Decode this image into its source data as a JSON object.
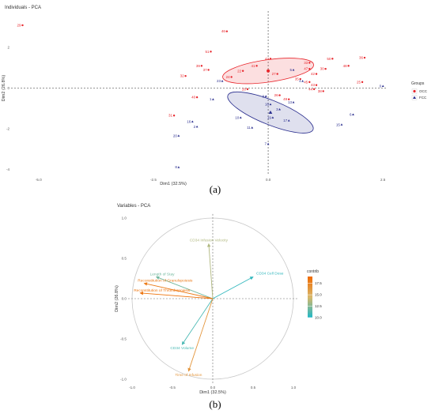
{
  "chart_data": [
    {
      "type": "scatter",
      "title": "Individuals - PCA",
      "xlabel": "Dim1 (32.5%)",
      "ylabel": "Dim2 (26.8%)",
      "xlim": [
        -5.6,
        2.6
      ],
      "ylim": [
        -4.3,
        3.8
      ],
      "x_ticks": [
        -5.0,
        -2.5,
        0.0,
        2.5
      ],
      "y_ticks": [
        -4,
        -2,
        0,
        2
      ],
      "legend": {
        "title": "Groups",
        "placement": "right",
        "entries": [
          "OCC",
          "FCC"
        ]
      },
      "colors": {
        "OCC": "#e8262c",
        "FCC": "#2b2f8f"
      },
      "series": [
        {
          "name": "OCC",
          "points": [
            {
              "label": "29",
              "x": -5.35,
              "y": 3.1
            },
            {
              "label": "46",
              "x": -0.9,
              "y": 2.8
            },
            {
              "label": "51",
              "x": -1.25,
              "y": 1.8
            },
            {
              "label": "39",
              "x": -1.45,
              "y": 1.1
            },
            {
              "label": "37",
              "x": -1.3,
              "y": 0.9
            },
            {
              "label": "32",
              "x": -1.8,
              "y": 0.6
            },
            {
              "label": "43",
              "x": 0.05,
              "y": 1.45
            },
            {
              "label": "41",
              "x": -0.25,
              "y": 1.1
            },
            {
              "label": "22",
              "x": -0.55,
              "y": 0.85
            },
            {
              "label": "27",
              "x": 0.2,
              "y": 0.7
            },
            {
              "label": "24",
              "x": -0.8,
              "y": 0.55
            },
            {
              "label": "50",
              "x": 1.4,
              "y": 1.45
            },
            {
              "label": "36",
              "x": 2.1,
              "y": 1.5
            },
            {
              "label": "33",
              "x": 0.9,
              "y": 1.25
            },
            {
              "label": "48",
              "x": 1.75,
              "y": 1.1
            },
            {
              "label": "47",
              "x": 0.9,
              "y": 0.95
            },
            {
              "label": "30",
              "x": 1.25,
              "y": 0.95
            },
            {
              "label": "42",
              "x": 1.05,
              "y": 0.7
            },
            {
              "label": "35",
              "x": 0.7,
              "y": 0.45
            },
            {
              "label": "45",
              "x": 0.9,
              "y": 0.3
            },
            {
              "label": "43",
              "x": 1.05,
              "y": 0.15
            },
            {
              "label": "44",
              "x": 1.0,
              "y": -0.05
            },
            {
              "label": "38",
              "x": 1.2,
              "y": -0.15
            },
            {
              "label": "25",
              "x": 2.05,
              "y": 0.3
            },
            {
              "label": "28",
              "x": -0.45,
              "y": -0.05
            },
            {
              "label": "40",
              "x": -1.55,
              "y": -0.45
            },
            {
              "label": "31",
              "x": -2.05,
              "y": -1.35
            },
            {
              "label": "26",
              "x": 0.25,
              "y": -0.35
            },
            {
              "label": "49",
              "x": 0.45,
              "y": -0.55
            }
          ],
          "mean": {
            "x": 0.0,
            "y": 0.85
          }
        },
        {
          "name": "FCC",
          "points": [
            {
              "label": "5",
              "x": 0.55,
              "y": 0.9
            },
            {
              "label": "23",
              "x": -1.0,
              "y": 0.35
            },
            {
              "label": "4",
              "x": 0.75,
              "y": 0.35
            },
            {
              "label": "0",
              "x": 2.5,
              "y": 0.1
            },
            {
              "label": "1",
              "x": -1.2,
              "y": -0.55
            },
            {
              "label": "9",
              "x": -0.05,
              "y": -0.4
            },
            {
              "label": "18",
              "x": 0.05,
              "y": -0.8
            },
            {
              "label": "13",
              "x": 0.55,
              "y": -0.7
            },
            {
              "label": "3",
              "x": 0.25,
              "y": -1.05
            },
            {
              "label": "10",
              "x": -0.6,
              "y": -1.45
            },
            {
              "label": "19",
              "x": 0.1,
              "y": -1.45
            },
            {
              "label": "17",
              "x": 0.45,
              "y": -1.6
            },
            {
              "label": "11",
              "x": -0.35,
              "y": -1.95
            },
            {
              "label": "16",
              "x": -1.65,
              "y": -1.65
            },
            {
              "label": "2",
              "x": -1.55,
              "y": -1.9
            },
            {
              "label": "6",
              "x": 1.85,
              "y": -1.3
            },
            {
              "label": "15",
              "x": 1.6,
              "y": -1.8
            },
            {
              "label": "7",
              "x": 0.0,
              "y": -2.75
            },
            {
              "label": "20",
              "x": -1.95,
              "y": -2.35
            },
            {
              "label": "8",
              "x": -1.95,
              "y": -3.9
            }
          ],
          "mean": {
            "x": 0.05,
            "y": -1.2
          }
        }
      ],
      "ellipses": [
        {
          "group": "OCC",
          "cx": 0.0,
          "cy": 0.85,
          "rx": 1.0,
          "ry": 0.55,
          "angle_deg": -8
        },
        {
          "group": "FCC",
          "cx": 0.05,
          "cy": -1.2,
          "rx": 1.0,
          "ry": 0.6,
          "angle_deg": 22
        }
      ]
    },
    {
      "type": "scatter",
      "subtype": "pca-variables-correlation-circle",
      "title": "Variables - PCA",
      "xlabel": "Dim1 (32.5%)",
      "ylabel": "Dim2 (26.8%)",
      "xlim": [
        -1.05,
        1.05
      ],
      "ylim": [
        -1.05,
        1.05
      ],
      "x_ticks": [
        -1.0,
        -0.5,
        0.0,
        0.5,
        1.0
      ],
      "y_ticks": [
        -1.0,
        -0.5,
        0.0,
        0.5,
        1.0
      ],
      "legend": {
        "title": "contrib",
        "placement": "right",
        "ticks": [
          17.5,
          15.0,
          12.5,
          10.0
        ],
        "range": [
          10.0,
          19.0
        ]
      },
      "colors": {
        "low": "#1fb8c8",
        "mid": "#d9b86a",
        "high": "#f06a00"
      },
      "vectors": [
        {
          "label": "CD34 Infusion Velocity",
          "x": -0.05,
          "y": 0.68,
          "contrib": 13.5
        },
        {
          "label": "CD34 Cell Dose",
          "x": 0.5,
          "y": 0.27,
          "contrib": 10.5
        },
        {
          "label": "Length of Stay",
          "x": -0.7,
          "y": 0.27,
          "contrib": 12.0
        },
        {
          "label": "Reconstitution of Granulopoiesis",
          "x": -0.85,
          "y": 0.19,
          "contrib": 18.0
        },
        {
          "label": "Reconstitution of Thrombopoiesis",
          "x": -0.9,
          "y": 0.07,
          "contrib": 18.5
        },
        {
          "label": "CD34 Volume",
          "x": -0.38,
          "y": -0.57,
          "contrib": 11.0
        },
        {
          "label": "Time of Infusion",
          "x": -0.3,
          "y": -0.9,
          "contrib": 16.5
        }
      ]
    }
  ],
  "captions": {
    "a": "(a)",
    "b": "(b)"
  }
}
